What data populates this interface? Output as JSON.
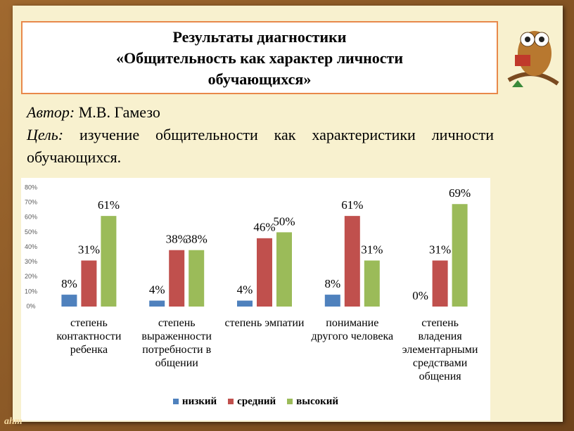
{
  "header": {
    "title_lines": [
      "Результаты диагностики",
      "«Общительность как характер личности",
      "обучающихся»"
    ]
  },
  "info": {
    "author_label": "Автор:",
    "author": "М.В. Гамезо",
    "goal_label": "Цель:",
    "goal": "изучение общительности как характеристики личности обучающихся."
  },
  "watermark": "ahm",
  "chart_data": {
    "type": "bar",
    "categories": [
      "степень контактности ребенка",
      "степень выраженности потребности в общении",
      "степень эмпатии",
      "понимание другого человека",
      "степень владения элементарными средствами общения"
    ],
    "series": [
      {
        "name": "низкий",
        "color": "#4f81bd",
        "values": [
          8,
          4,
          4,
          8,
          0
        ],
        "value_labels": [
          "8%",
          "4%",
          "4%",
          "8%",
          "0%"
        ]
      },
      {
        "name": "средний",
        "color": "#c0504d",
        "values": [
          31,
          38,
          46,
          61,
          31
        ],
        "value_labels": [
          "31%",
          "38%",
          "46%",
          "61%",
          "31%"
        ]
      },
      {
        "name": "высокий",
        "color": "#9bbb59",
        "values": [
          61,
          38,
          50,
          31,
          69
        ],
        "value_labels": [
          "61%",
          "38%",
          "50%",
          "31%",
          "69%"
        ]
      }
    ],
    "ylim": [
      0,
      80
    ],
    "yticks": [
      {
        "value": 0,
        "label": "0%"
      },
      {
        "value": 10,
        "label": "10%"
      },
      {
        "value": 20,
        "label": "20%"
      },
      {
        "value": 30,
        "label": "30%"
      },
      {
        "value": 40,
        "label": "40%"
      },
      {
        "value": 50,
        "label": "50%"
      },
      {
        "value": 60,
        "label": "60%"
      },
      {
        "value": 70,
        "label": "70%"
      },
      {
        "value": 80,
        "label": "80%"
      }
    ],
    "grid": false,
    "legend": "bottom"
  }
}
